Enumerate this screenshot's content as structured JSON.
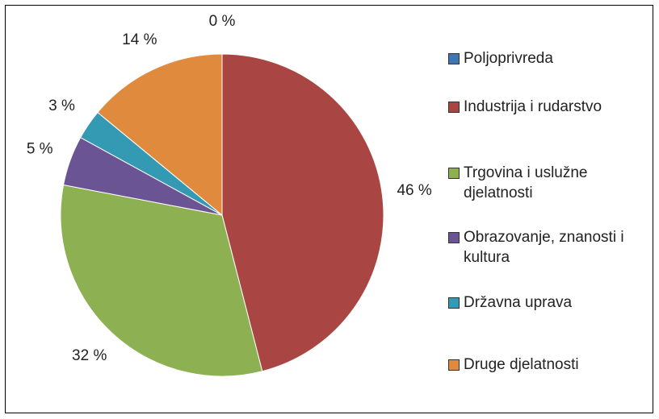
{
  "chart_data": {
    "type": "pie",
    "categories": [
      "Poljoprivreda",
      "Industrija i rudarstvo",
      "Trgovina i uslužne djelatnosti",
      "Obrazovanje, znanosti i kultura",
      "Državna uprava",
      "Druge djelatnosti"
    ],
    "values": [
      0,
      46,
      32,
      5,
      3,
      14
    ],
    "value_labels": [
      "0 %",
      "46 %",
      "32 %",
      "5 %",
      "3 %",
      "14 %"
    ],
    "colors": [
      "#3f75b3",
      "#a94643",
      "#8db052",
      "#6b5494",
      "#3499b3",
      "#e08a3e"
    ],
    "legend": "right"
  }
}
